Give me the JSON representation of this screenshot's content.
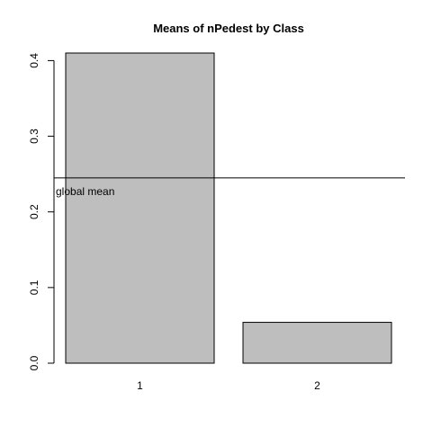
{
  "chart_data": {
    "type": "bar",
    "title": "Means of nPedest by Class",
    "xlabel": "",
    "ylabel": "",
    "categories": [
      "1",
      "2"
    ],
    "values": [
      0.41,
      0.054
    ],
    "ylim": [
      0,
      0.41
    ],
    "yticks": [
      0.0,
      0.1,
      0.2,
      0.3,
      0.4
    ],
    "ytick_labels": [
      "0.0",
      "0.1",
      "0.2",
      "0.3",
      "0.4"
    ],
    "bar_color": "#bebebe",
    "reference_line": {
      "value": 0.245,
      "label": "global mean"
    },
    "grid": false,
    "legend": "none"
  }
}
